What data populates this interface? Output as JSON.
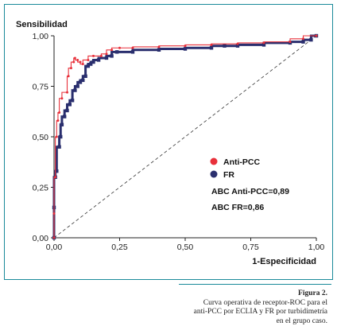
{
  "chart_data": {
    "type": "line",
    "ylabel": "Sensibilidad",
    "xlabel": "1-Especificidad",
    "xlim": [
      0,
      1
    ],
    "ylim": [
      0,
      1
    ],
    "xticks": [
      "0,00",
      "0,25",
      "0,50",
      "0,75",
      "1,00"
    ],
    "yticks": [
      "0,00",
      "0,25",
      "0,50",
      "0,75",
      "1,00"
    ],
    "grid": false,
    "legend_position": "lower-right",
    "series": [
      {
        "name": "Anti-PCC",
        "color": "#e8303a",
        "points": [
          [
            0,
            0
          ],
          [
            0,
            0.12
          ],
          [
            0.005,
            0.3
          ],
          [
            0.01,
            0.5
          ],
          [
            0.015,
            0.58
          ],
          [
            0.02,
            0.62
          ],
          [
            0.03,
            0.69
          ],
          [
            0.05,
            0.72
          ],
          [
            0.055,
            0.8
          ],
          [
            0.065,
            0.84
          ],
          [
            0.075,
            0.87
          ],
          [
            0.08,
            0.89
          ],
          [
            0.09,
            0.88
          ],
          [
            0.1,
            0.87
          ],
          [
            0.11,
            0.86
          ],
          [
            0.13,
            0.88
          ],
          [
            0.15,
            0.9
          ],
          [
            0.18,
            0.9
          ],
          [
            0.2,
            0.91
          ],
          [
            0.22,
            0.93
          ],
          [
            0.25,
            0.94
          ],
          [
            0.3,
            0.94
          ],
          [
            0.4,
            0.945
          ],
          [
            0.5,
            0.95
          ],
          [
            0.6,
            0.955
          ],
          [
            0.7,
            0.96
          ],
          [
            0.8,
            0.965
          ],
          [
            0.9,
            0.97
          ],
          [
            0.95,
            0.985
          ],
          [
            1,
            1
          ]
        ]
      },
      {
        "name": "FR",
        "color": "#2a2f6e",
        "points": [
          [
            0,
            0
          ],
          [
            0,
            0.15
          ],
          [
            0.005,
            0.3
          ],
          [
            0.01,
            0.33
          ],
          [
            0.02,
            0.45
          ],
          [
            0.025,
            0.5
          ],
          [
            0.03,
            0.56
          ],
          [
            0.04,
            0.6
          ],
          [
            0.05,
            0.63
          ],
          [
            0.06,
            0.66
          ],
          [
            0.07,
            0.68
          ],
          [
            0.08,
            0.73
          ],
          [
            0.09,
            0.75
          ],
          [
            0.1,
            0.77
          ],
          [
            0.11,
            0.78
          ],
          [
            0.12,
            0.8
          ],
          [
            0.13,
            0.85
          ],
          [
            0.14,
            0.86
          ],
          [
            0.15,
            0.87
          ],
          [
            0.17,
            0.88
          ],
          [
            0.2,
            0.89
          ],
          [
            0.22,
            0.9
          ],
          [
            0.24,
            0.92
          ],
          [
            0.3,
            0.92
          ],
          [
            0.4,
            0.93
          ],
          [
            0.5,
            0.935
          ],
          [
            0.6,
            0.94
          ],
          [
            0.65,
            0.95
          ],
          [
            0.7,
            0.95
          ],
          [
            0.8,
            0.955
          ],
          [
            0.9,
            0.965
          ],
          [
            0.95,
            0.97
          ],
          [
            0.98,
            0.98
          ],
          [
            1,
            1
          ]
        ]
      }
    ],
    "reference_line": {
      "from": [
        0,
        0
      ],
      "to": [
        1,
        1
      ],
      "style": "dashed"
    },
    "annotations": [
      "ABC Anti-PCC=0,89",
      "ABC FR=0,86"
    ]
  },
  "caption": {
    "title": "Figura 2.",
    "lines": [
      "Curva operativa de receptor-ROC para el",
      "anti-PCC por ECLIA y FR por turbidimetría",
      "en el grupo caso."
    ]
  }
}
